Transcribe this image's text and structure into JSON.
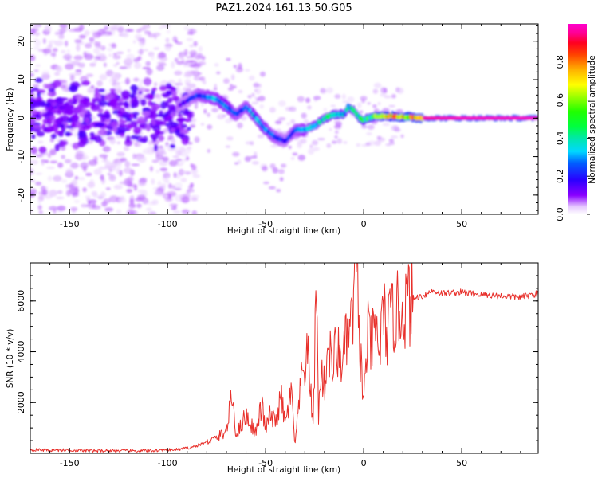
{
  "figure": {
    "title": "PAZ1.2024.161.13.50.G05"
  },
  "chart_data": [
    {
      "type": "heatmap",
      "title": "PAZ1.2024.161.13.50.G05",
      "xlabel": "Height of straight line (km)",
      "ylabel": "Frequency (Hz)",
      "xlim": [
        -170,
        89
      ],
      "ylim": [
        -25,
        24.5
      ],
      "xticks": [
        -150,
        -100,
        -50,
        0,
        50
      ],
      "yticks": [
        -20,
        -10,
        0,
        10,
        20
      ],
      "grid": false,
      "colorbar": {
        "label": "Normalized spectral amplitude",
        "range": [
          0.0,
          1.0
        ],
        "ticks": [
          0.0,
          0.2,
          0.4,
          0.6,
          0.8
        ],
        "colormap": "gist_ncar-like (white→purple→blue→cyan→green→yellow→orange→red→magenta)"
      },
      "ridge": {
        "description": "Frequency of peak spectral amplitude vs height (estimated)",
        "x": [
          -170,
          -150,
          -130,
          -110,
          -95,
          -85,
          -75,
          -70,
          -65,
          -60,
          -55,
          -50,
          -45,
          -40,
          -35,
          -30,
          -25,
          -20,
          -15,
          -10,
          -8,
          -5,
          -2,
          0,
          5,
          10,
          15,
          20,
          25,
          30,
          50,
          70,
          89
        ],
        "y": [
          1,
          1,
          1,
          2,
          3,
          6,
          5,
          3,
          1,
          3,
          0,
          -3,
          -5,
          -6,
          -3,
          -3,
          -2,
          0,
          1,
          1,
          3,
          2,
          0,
          -0.5,
          0.5,
          0.5,
          0.5,
          0.3,
          0.2,
          0.0,
          0.0,
          0.0,
          0.0
        ],
        "amplitude": [
          0.1,
          0.1,
          0.1,
          0.1,
          0.12,
          0.3,
          0.35,
          0.4,
          0.3,
          0.3,
          0.4,
          0.35,
          0.3,
          0.25,
          0.3,
          0.35,
          0.4,
          0.45,
          0.5,
          0.45,
          0.4,
          0.5,
          0.55,
          0.55,
          0.6,
          0.7,
          0.85,
          0.85,
          0.9,
          0.95,
          0.98,
          0.98,
          0.98
        ]
      }
    },
    {
      "type": "line",
      "xlabel": "Height of straight line (km)",
      "ylabel": "SNR (10 * v/v)",
      "xlim": [
        -170,
        89
      ],
      "ylim": [
        0,
        7500
      ],
      "xticks": [
        -150,
        -100,
        -50,
        0,
        50
      ],
      "yticks": [
        2000,
        4000,
        6000
      ],
      "grid": false,
      "series": [
        {
          "color": "#e8302b",
          "x": [
            -170,
            -160,
            -150,
            -140,
            -130,
            -120,
            -110,
            -100,
            -95,
            -90,
            -85,
            -80,
            -75,
            -70,
            -67,
            -65,
            -62,
            -60,
            -55,
            -52,
            -50,
            -48,
            -45,
            -42,
            -40,
            -37,
            -35,
            -32,
            -30,
            -28,
            -26,
            -24,
            -23,
            -22,
            -20,
            -18,
            -16,
            -14,
            -12,
            -10,
            -8,
            -6,
            -4,
            -2,
            0,
            2,
            4,
            6,
            8,
            10,
            12,
            15,
            20,
            25,
            30,
            35,
            40,
            50,
            60,
            70,
            80,
            89
          ],
          "y": [
            150,
            120,
            130,
            100,
            110,
            90,
            100,
            130,
            150,
            200,
            300,
            450,
            600,
            900,
            2300,
            700,
            1200,
            1500,
            800,
            1900,
            900,
            1500,
            1200,
            2200,
            1100,
            2400,
            300,
            2700,
            3500,
            3800,
            1000,
            6700,
            1200,
            3400,
            2600,
            4400,
            3300,
            4200,
            3700,
            3900,
            4700,
            5000,
            7500,
            4400,
            1900,
            4700,
            4200,
            4900,
            4000,
            5500,
            4800,
            5400,
            5700,
            6100,
            6200,
            6400,
            6300,
            6350,
            6250,
            6200,
            6150,
            6300
          ]
        }
      ]
    }
  ]
}
